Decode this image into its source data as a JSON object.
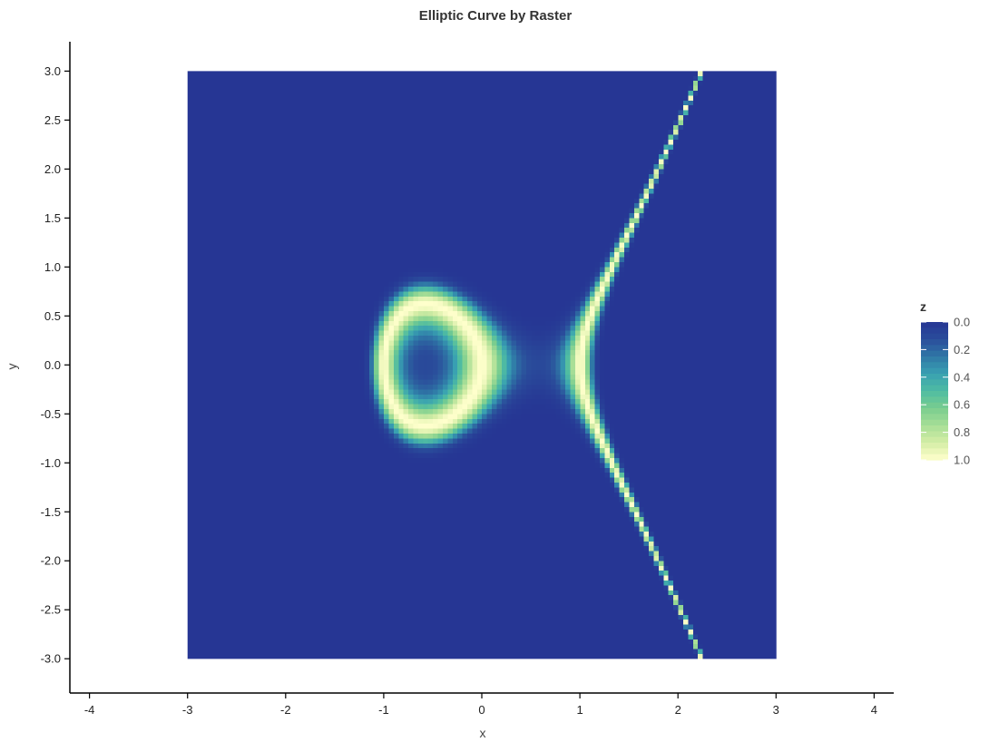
{
  "chart_data": {
    "type": "heatmap",
    "title": "Elliptic Curve by Raster",
    "xlabel": "x",
    "ylabel": "y",
    "xlim": [
      -4.2,
      4.2
    ],
    "ylim": [
      -3.35,
      3.3
    ],
    "x_ticks": [
      "-4",
      "-3",
      "-2",
      "-1",
      "0",
      "1",
      "2",
      "3",
      "4"
    ],
    "y_ticks": [
      "3.0",
      "2.5",
      "2.0",
      "1.5",
      "1.0",
      "0.5",
      "0.0",
      "-0.5",
      "-1.0",
      "-1.5",
      "-2.0",
      "-2.5",
      "-3.0"
    ],
    "raster_extent": {
      "x": [
        -3.0,
        3.0
      ],
      "y": [
        -3.0,
        3.0
      ]
    },
    "grid": false,
    "equation": "y^2 = x^3 - x",
    "z_range": [
      0.0,
      1.0
    ],
    "legend": {
      "title": "z",
      "position": "right",
      "ticks": [
        "0.0",
        "0.2",
        "0.4",
        "0.6",
        "0.8",
        "1.0"
      ]
    },
    "colormap": [
      "#263694",
      "#2a4d9b",
      "#2f77a6",
      "#38a0b2",
      "#4fbca2",
      "#79cd8f",
      "#a7de96",
      "#d4eda6",
      "#ffffcc"
    ]
  }
}
